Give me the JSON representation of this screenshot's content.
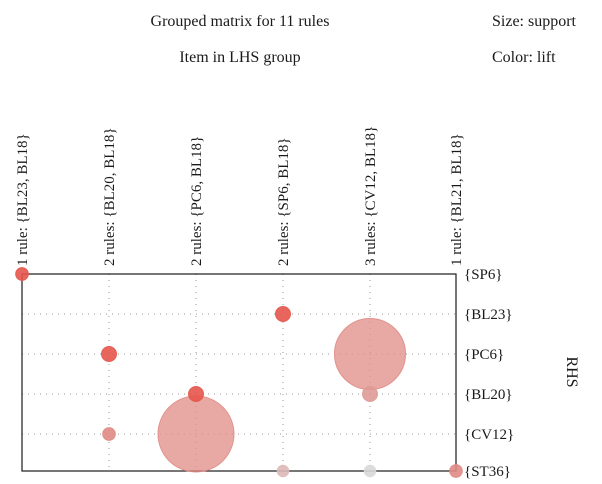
{
  "chart_data": {
    "type": "grouped-matrix",
    "title": "Grouped matrix for 11 rules",
    "xlabel": "Item in LHS group",
    "ylabel": "RHS",
    "size_legend": "Size: support",
    "color_legend": "Color: lift",
    "lhs_groups": [
      "1 rule: {BL23, BL18}",
      "2 rules: {BL20, BL18}",
      "2 rules: {PC6, BL18}",
      "2 rules: {SP6, BL18}",
      "3 rules: {CV12, BL18}",
      "1 rule: {BL21, BL18}"
    ],
    "rhs_items": [
      "{SP6}",
      "{BL23}",
      "{PC6}",
      "{BL20}",
      "{CV12}",
      "{ST36}"
    ],
    "points": [
      {
        "lhs": 0,
        "rhs": 0,
        "support": 0.004,
        "lift": 0.85
      },
      {
        "lhs": 3,
        "rhs": 1,
        "support": 0.006,
        "lift": 0.85
      },
      {
        "lhs": 1,
        "rhs": 2,
        "support": 0.006,
        "lift": 0.85
      },
      {
        "lhs": 4,
        "rhs": 2,
        "support": 0.17,
        "lift": 0.5
      },
      {
        "lhs": 2,
        "rhs": 3,
        "support": 0.006,
        "lift": 0.85
      },
      {
        "lhs": 4,
        "rhs": 3,
        "support": 0.006,
        "lift": 0.4
      },
      {
        "lhs": 1,
        "rhs": 4,
        "support": 0.004,
        "lift": 0.5
      },
      {
        "lhs": 2,
        "rhs": 4,
        "support": 0.2,
        "lift": 0.5
      },
      {
        "lhs": 3,
        "rhs": 5,
        "support": 0.003,
        "lift": 0.2
      },
      {
        "lhs": 4,
        "rhs": 5,
        "support": 0.003,
        "lift": 0.0
      },
      {
        "lhs": 5,
        "rhs": 5,
        "support": 0.004,
        "lift": 0.5
      }
    ],
    "grid": true
  }
}
